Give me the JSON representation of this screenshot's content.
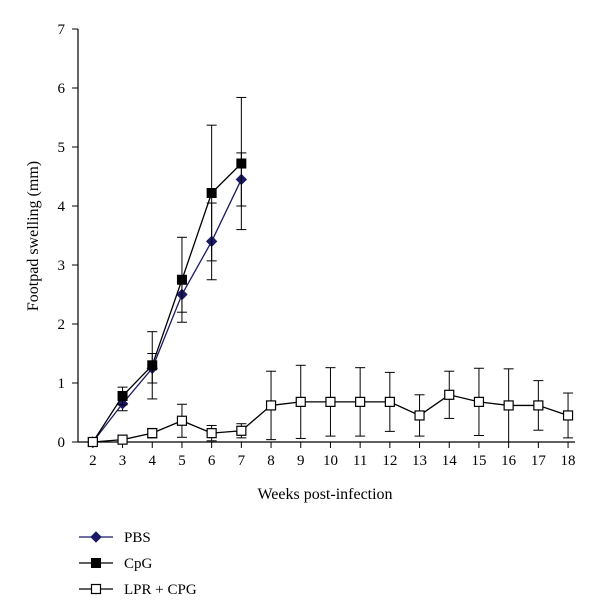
{
  "chart_data": {
    "type": "line",
    "title": "",
    "xlabel": "Weeks post-infection",
    "ylabel": "Footpad swelling (mm)",
    "xlim": [
      2,
      18
    ],
    "ylim": [
      0,
      7
    ],
    "x_ticks": [
      2,
      3,
      4,
      5,
      6,
      7,
      8,
      9,
      10,
      11,
      12,
      13,
      14,
      15,
      16,
      17,
      18
    ],
    "y_ticks": [
      0,
      1,
      2,
      3,
      4,
      5,
      6,
      7
    ],
    "grid": false,
    "legend_position": "bottom-left",
    "series": [
      {
        "name": "PBS",
        "marker": "diamond-filled",
        "color": "#1a1a66",
        "x": [
          2,
          3,
          4,
          5,
          6,
          7
        ],
        "y": [
          0.0,
          0.65,
          1.25,
          2.5,
          3.4,
          4.45
        ],
        "error": [
          0.0,
          0.12,
          0.25,
          0.3,
          0.65,
          0.45
        ]
      },
      {
        "name": "CpG",
        "marker": "square-filled",
        "color": "#000000",
        "x": [
          2,
          3,
          4,
          5,
          6,
          7
        ],
        "y": [
          0.0,
          0.78,
          1.3,
          2.75,
          4.22,
          4.72
        ],
        "error": [
          0.0,
          0.15,
          0.57,
          0.72,
          1.15,
          1.12
        ]
      },
      {
        "name": "LPR + CPG",
        "marker": "square-open",
        "color": "#000000",
        "x": [
          2,
          3,
          4,
          5,
          6,
          7,
          8,
          9,
          10,
          11,
          12,
          13,
          14,
          15,
          16,
          17,
          18
        ],
        "y": [
          0.0,
          0.04,
          0.15,
          0.36,
          0.15,
          0.19,
          0.62,
          0.68,
          0.68,
          0.68,
          0.68,
          0.45,
          0.8,
          0.68,
          0.62,
          0.62,
          0.45
        ],
        "error": [
          0.0,
          0.0,
          0.08,
          0.28,
          0.13,
          0.12,
          0.58,
          0.62,
          0.58,
          0.58,
          0.5,
          0.35,
          0.4,
          0.57,
          0.62,
          0.42,
          0.38
        ]
      }
    ]
  }
}
